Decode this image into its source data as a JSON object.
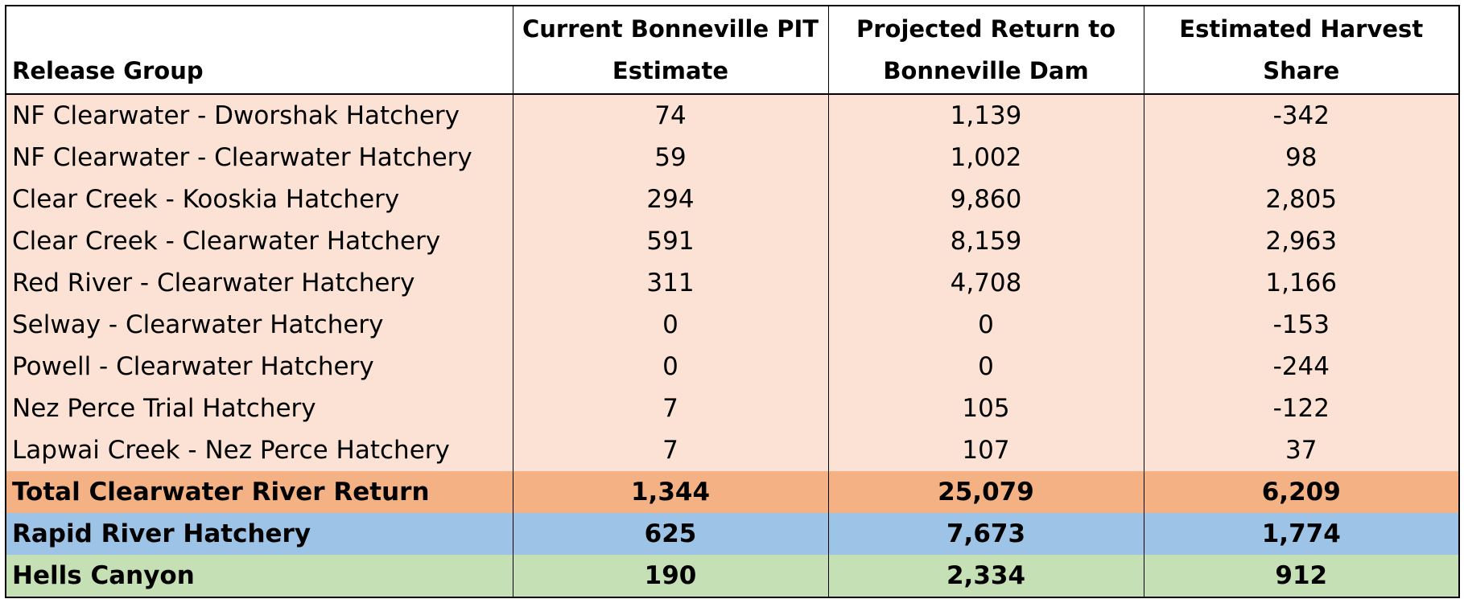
{
  "colors": {
    "release_row_bg": "#fbe2d5",
    "total_row_bg": "#f4b183",
    "rapid_row_bg": "#9dc3e6",
    "hells_row_bg": "#c5e0b4"
  },
  "table": {
    "headers": {
      "group": "Release Group",
      "pit": "Current Bonneville PIT Estimate",
      "projected": "Projected Return to Bonneville Dam",
      "harvest": "Estimated Harvest Share"
    },
    "rows": [
      {
        "group": "NF Clearwater - Dworshak Hatchery",
        "pit": "74",
        "projected": "1,139",
        "harvest": "-342"
      },
      {
        "group": "NF Clearwater - Clearwater Hatchery",
        "pit": "59",
        "projected": "1,002",
        "harvest": "98"
      },
      {
        "group": "Clear Creek - Kooskia Hatchery",
        "pit": "294",
        "projected": "9,860",
        "harvest": "2,805"
      },
      {
        "group": "Clear Creek - Clearwater Hatchery",
        "pit": "591",
        "projected": "8,159",
        "harvest": "2,963"
      },
      {
        "group": "Red River - Clearwater Hatchery",
        "pit": "311",
        "projected": "4,708",
        "harvest": "1,166"
      },
      {
        "group": "Selway - Clearwater Hatchery",
        "pit": "0",
        "projected": "0",
        "harvest": "-153"
      },
      {
        "group": "Powell - Clearwater Hatchery",
        "pit": "0",
        "projected": "0",
        "harvest": "-244"
      },
      {
        "group": "Nez Perce Trial Hatchery",
        "pit": "7",
        "projected": "105",
        "harvest": "-122"
      },
      {
        "group": "Lapwai Creek - Nez Perce Hatchery",
        "pit": "7",
        "projected": "107",
        "harvest": "37"
      }
    ],
    "total": {
      "group": "Total Clearwater River Return",
      "pit": "1,344",
      "projected": "25,079",
      "harvest": "6,209"
    },
    "rapid": {
      "group": "Rapid River Hatchery",
      "pit": "625",
      "projected": "7,673",
      "harvest": "1,774"
    },
    "hells": {
      "group": "Hells Canyon",
      "pit": "190",
      "projected": "2,334",
      "harvest": "912"
    }
  }
}
